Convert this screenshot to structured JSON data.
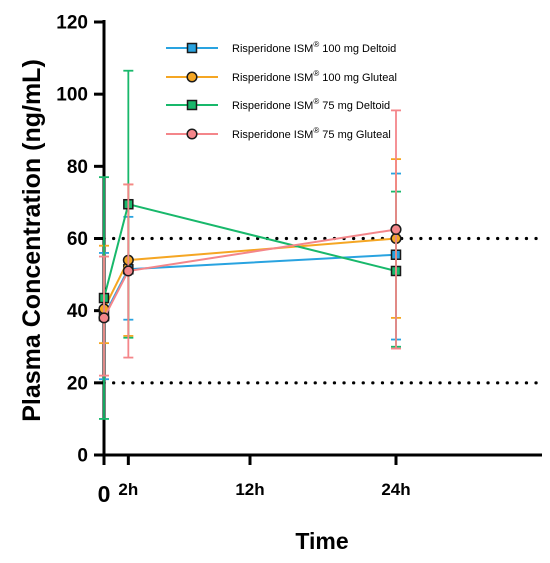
{
  "chart_data": {
    "type": "line",
    "ylabel": "Plasma Concentration (ng/mL)",
    "xlabel": "Time",
    "ylim": [
      0,
      120
    ],
    "xlim": [
      0,
      36
    ],
    "y_ticks": [
      0,
      20,
      40,
      60,
      80,
      100,
      120
    ],
    "x_ticks": [
      {
        "value": 0,
        "label": "0"
      },
      {
        "value": 2,
        "label": "2h"
      },
      {
        "value": 12,
        "label": "12h"
      },
      {
        "value": 24,
        "label": "24h"
      }
    ],
    "reference_lines": [
      20,
      60
    ],
    "series": [
      {
        "legend_label": "Risperidone ISM",
        "legend_sup": "®",
        "legend_suffix": "100 mg Deltoid",
        "color": "#29A3E0",
        "marker": "square",
        "x": [
          0,
          2,
          24
        ],
        "y": [
          38.5,
          51.5,
          55.5
        ],
        "err_low": [
          21,
          37.5,
          32
        ],
        "err_high": [
          56,
          66,
          78
        ]
      },
      {
        "legend_label": "Risperidone ISM",
        "legend_sup": "®",
        "legend_suffix": "100 mg Gluteal",
        "color": "#F5A623",
        "marker": "circle",
        "x": [
          0,
          2,
          24
        ],
        "y": [
          40.5,
          54,
          60
        ],
        "err_low": [
          31,
          33,
          38
        ],
        "err_high": [
          58,
          75,
          82
        ]
      },
      {
        "legend_label": "Risperidone ISM",
        "legend_sup": "®",
        "legend_suffix": "75 mg Deltoid",
        "color": "#18B86B",
        "marker": "square",
        "x": [
          0,
          2,
          24
        ],
        "y": [
          43.5,
          69.5,
          51
        ],
        "err_low": [
          10,
          32.5,
          30
        ],
        "err_high": [
          77,
          106.5,
          73
        ]
      },
      {
        "legend_label": "Risperidone ISM",
        "legend_sup": "®",
        "legend_suffix": "75 mg Gluteal",
        "color": "#F4868A",
        "marker": "circle",
        "x": [
          0,
          2,
          24
        ],
        "y": [
          38,
          51,
          62.5
        ],
        "err_low": [
          22,
          27,
          29.5
        ],
        "err_high": [
          55,
          75,
          95.5
        ]
      }
    ]
  }
}
